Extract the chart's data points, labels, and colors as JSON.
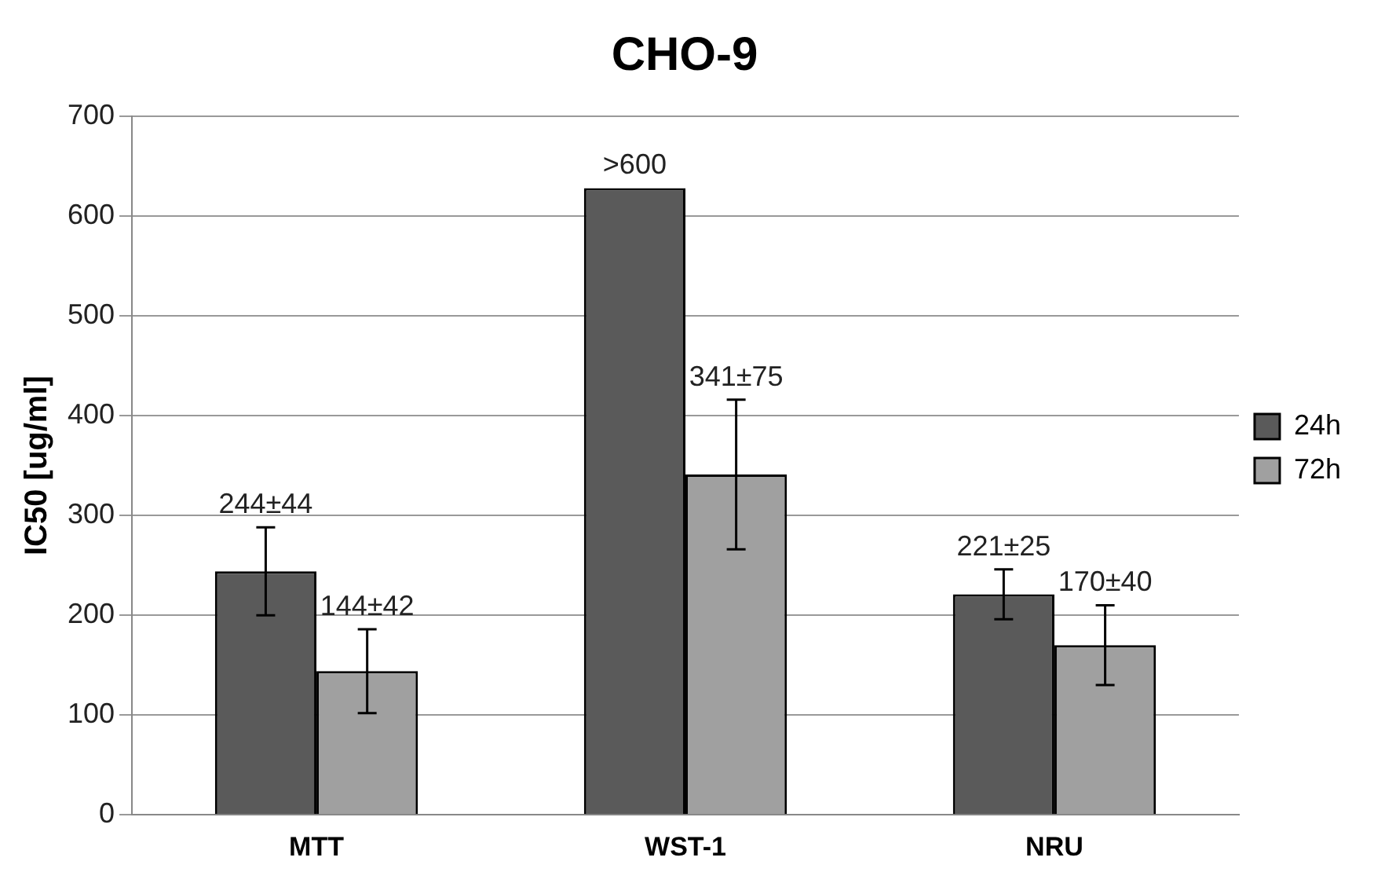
{
  "chart_data": {
    "type": "bar",
    "title": "CHO-9",
    "ylabel": "IC50 [ug/ml]",
    "categories": [
      "MTT",
      "WST-1",
      "NRU"
    ],
    "series": [
      {
        "name": "24h",
        "color": "#5a5a5a",
        "values": [
          244,
          628,
          221
        ],
        "errors": [
          44,
          null,
          25
        ],
        "value_labels": [
          "244±44",
          ">600",
          "221±25"
        ]
      },
      {
        "name": "72h",
        "color": "#a0a0a0",
        "values": [
          144,
          341,
          170
        ],
        "errors": [
          42,
          75,
          40
        ],
        "value_labels": [
          "144±42",
          "341±75",
          "170±40"
        ]
      }
    ],
    "ylim": [
      0,
      700
    ],
    "yticks": [
      0,
      100,
      200,
      300,
      400,
      500,
      600,
      700
    ],
    "grid": "y",
    "legend": "right"
  }
}
